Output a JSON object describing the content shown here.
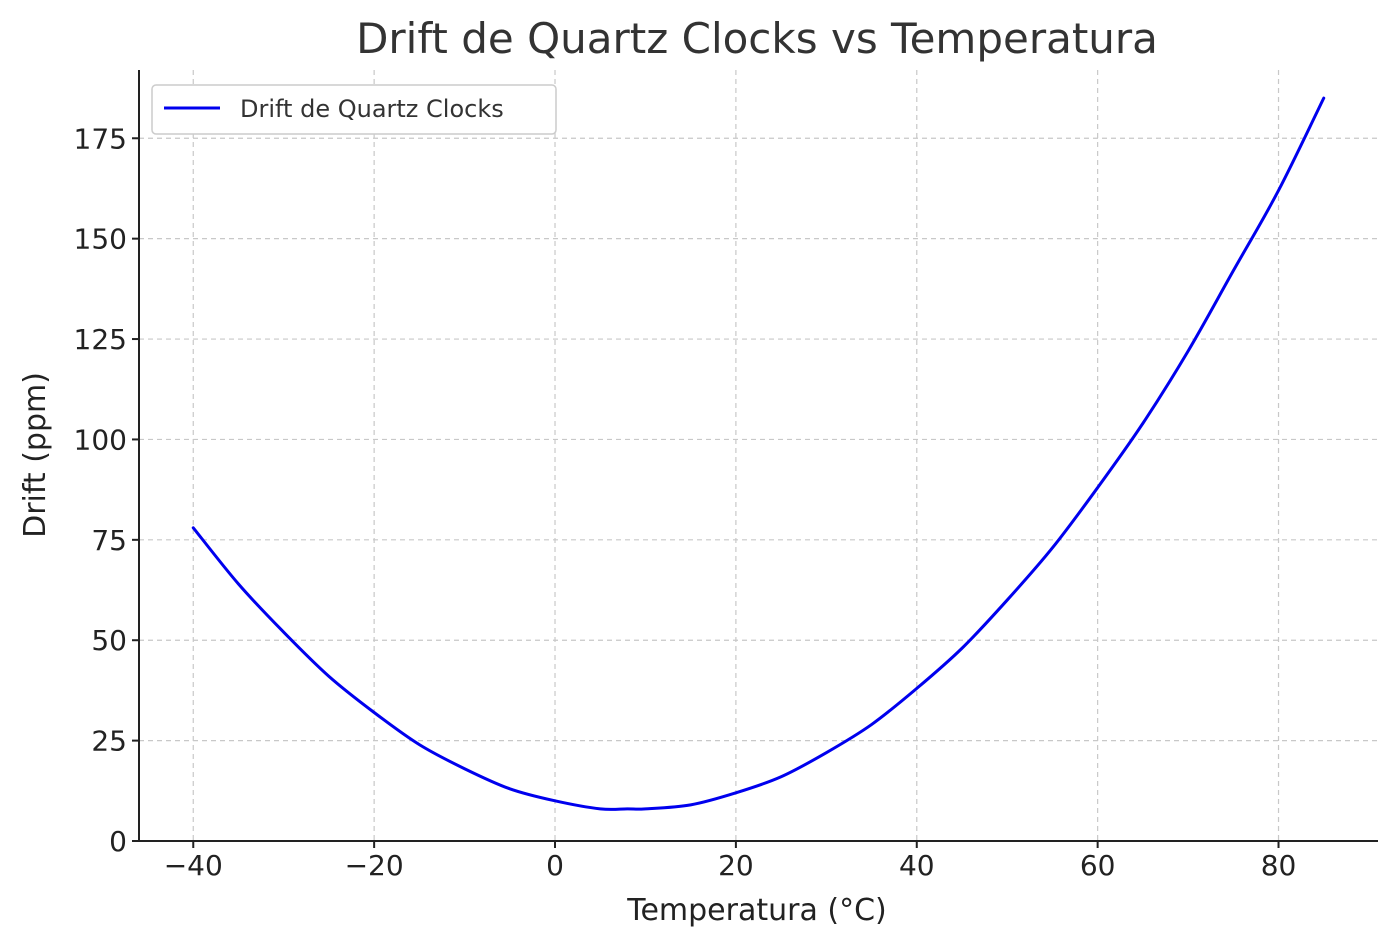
{
  "chart_data": {
    "type": "line",
    "title": "Drift de Quartz Clocks vs Temperatura",
    "xlabel": "Temperatura (°C)",
    "ylabel": "Drift (ppm)",
    "xlim": [
      -46,
      91
    ],
    "ylim": [
      0,
      192
    ],
    "xticks": [
      -40,
      -20,
      0,
      20,
      40,
      60,
      80
    ],
    "xtick_labels": [
      "−40",
      "−20",
      "0",
      "20",
      "40",
      "60",
      "80"
    ],
    "yticks": [
      0,
      25,
      50,
      75,
      100,
      125,
      150,
      175
    ],
    "ytick_labels": [
      "0",
      "25",
      "50",
      "75",
      "100",
      "125",
      "150",
      "175"
    ],
    "grid": true,
    "legend": {
      "position": "top-left",
      "entries": [
        "Drift de Quartz Clocks"
      ]
    },
    "series": [
      {
        "name": "Drift de Quartz Clocks",
        "color": "#0000ee",
        "x": [
          -40,
          -35,
          -30,
          -25,
          -20,
          -15,
          -10,
          -5,
          0,
          5,
          8,
          10,
          15,
          20,
          25,
          30,
          35,
          40,
          45,
          50,
          55,
          60,
          65,
          70,
          75,
          80,
          85
        ],
        "y": [
          78,
          64,
          52,
          41,
          32,
          24,
          18,
          13,
          10,
          8,
          8,
          8,
          9,
          12,
          16,
          22,
          29,
          38,
          48,
          60,
          73,
          88,
          104,
          122,
          142,
          162,
          185
        ]
      }
    ]
  }
}
